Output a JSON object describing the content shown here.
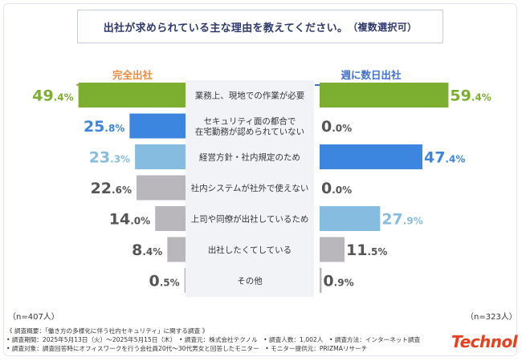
{
  "title": "出社が求められている主な理由を教えてください。",
  "title_note": "（複数選択可）",
  "left_heading": "完全出社",
  "right_heading": "週に数日出社",
  "left_n": "（n=407人）",
  "right_n": "（n=323人）",
  "footer": {
    "line1": "《 調査概要：「働き方の多様化に伴う社内セキュリティ」に関する調査 》",
    "line2": "• 調査期間：2025年5月13日（火）～2025年5月15日（木）　• 調査元：株式会社テクノル　• 調査人数：1,002人　• 調査方法：インターネット調査",
    "line3": "• 調査対象：調査回答時にオフィスワークを行う会社員20代～30代男女と回答したモニター　• モニター提供元：PRIZMAリサーチ"
  },
  "logo": "Technol",
  "chart_data": {
    "type": "bar",
    "categories": [
      [
        "業務上、現地での作業が必要"
      ],
      [
        "セキュリティ面の都合で",
        "在宅勤務が認められていない"
      ],
      [
        "経営方針・社内規定のため"
      ],
      [
        "社内システムが社外で使えない"
      ],
      [
        "上司や同僚が出社しているため"
      ],
      [
        "出社したくてしている"
      ],
      [
        "その他"
      ]
    ],
    "series": [
      {
        "name": "完全出社",
        "values": [
          49.4,
          25.8,
          23.3,
          22.6,
          14.0,
          8.4,
          0.5
        ],
        "colors": [
          "#7cae2f",
          "#3d86e0",
          "#86bce0",
          "#b9b6bc",
          "#b9b6bc",
          "#b9b6bc",
          "#b9b6bc"
        ],
        "label_colors": [
          "#7cae2f",
          "#3d86e0",
          "#86bce0",
          "#555555",
          "#555555",
          "#555555",
          "#555555"
        ]
      },
      {
        "name": "週に数日出社",
        "values": [
          59.4,
          0.0,
          47.4,
          0.0,
          27.9,
          11.5,
          0.9
        ],
        "colors": [
          "#7cae2f",
          "#b9b6bc",
          "#3d86e0",
          "#b9b6bc",
          "#86bce0",
          "#b9b6bc",
          "#b9b6bc"
        ],
        "label_colors": [
          "#7cae2f",
          "#555555",
          "#3d86e0",
          "#555555",
          "#86bce0",
          "#555555",
          "#555555"
        ]
      }
    ],
    "value_format": "percent_1dp"
  }
}
